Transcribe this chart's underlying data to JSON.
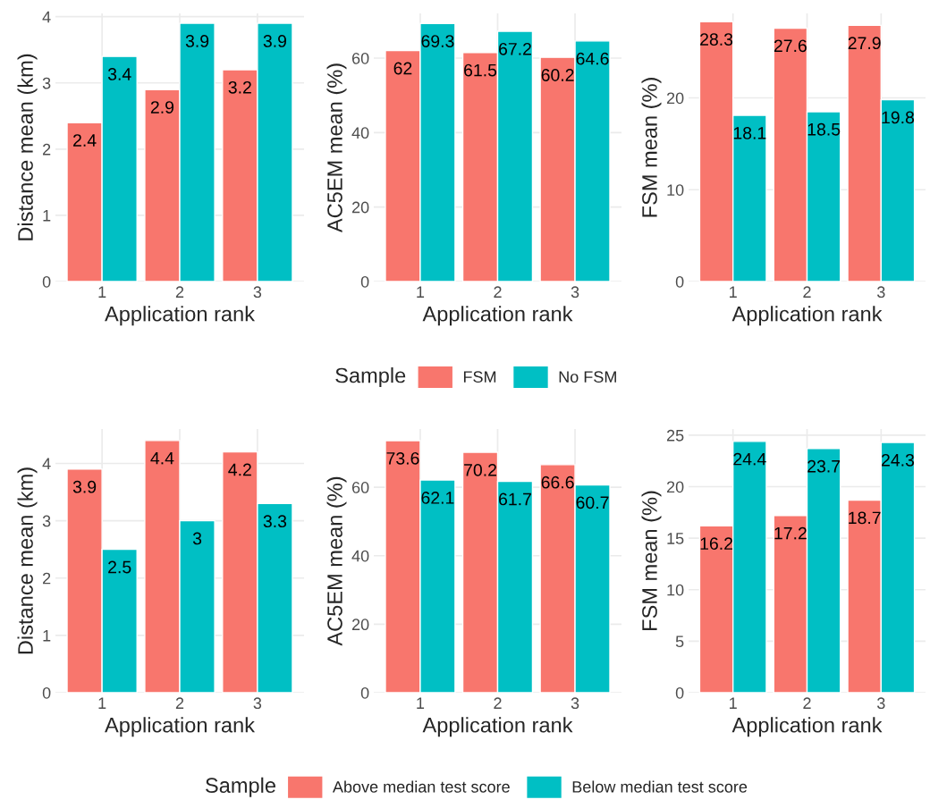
{
  "chart_data": [
    {
      "type": "bar",
      "categories": [
        "1",
        "2",
        "3"
      ],
      "xlabel": "Application rank",
      "ylabel": "Distance mean (km)",
      "ylim": [
        0,
        4.05
      ],
      "yticks": [
        0,
        1,
        2,
        3,
        4
      ],
      "grid": true,
      "data_labels": true,
      "series": [
        {
          "color": "#f8766d",
          "values": [
            2.4,
            2.9,
            3.2
          ]
        },
        {
          "color": "#00bfc4",
          "values": [
            3.4,
            3.9,
            3.9
          ]
        }
      ]
    },
    {
      "type": "bar",
      "categories": [
        "1",
        "2",
        "3"
      ],
      "xlabel": "Application rank",
      "ylabel": "AC5EM mean (%)",
      "ylim": [
        0,
        72
      ],
      "yticks": [
        0,
        20,
        40,
        60
      ],
      "grid": true,
      "data_labels": true,
      "legend": "bottom",
      "legend_title": "Sample",
      "series": [
        {
          "name": "FSM",
          "color": "#f8766d",
          "values": [
            62,
            61.5,
            60.2
          ]
        },
        {
          "name": "No FSM",
          "color": "#00bfc4",
          "values": [
            69.3,
            67.2,
            64.6
          ]
        }
      ]
    },
    {
      "type": "bar",
      "categories": [
        "1",
        "2",
        "3"
      ],
      "xlabel": "Application rank",
      "ylabel": "FSM mean (%)",
      "ylim": [
        0,
        29.2
      ],
      "yticks": [
        0,
        10,
        20
      ],
      "grid": true,
      "data_labels": true,
      "series": [
        {
          "color": "#f8766d",
          "values": [
            28.3,
            27.6,
            27.9
          ]
        },
        {
          "color": "#00bfc4",
          "values": [
            18.1,
            18.5,
            19.8
          ]
        }
      ]
    },
    {
      "type": "bar",
      "categories": [
        "1",
        "2",
        "3"
      ],
      "xlabel": "Application rank",
      "ylabel": "Distance mean (km)",
      "ylim": [
        0,
        4.6
      ],
      "yticks": [
        0,
        1,
        2,
        3,
        4
      ],
      "grid": true,
      "data_labels": true,
      "series": [
        {
          "color": "#f8766d",
          "values": [
            3.9,
            4.4,
            4.2
          ]
        },
        {
          "color": "#00bfc4",
          "values": [
            2.5,
            3,
            3.3
          ]
        }
      ]
    },
    {
      "type": "bar",
      "categories": [
        "1",
        "2",
        "3"
      ],
      "xlabel": "Application rank",
      "ylabel": "AC5EM mean (%)",
      "ylim": [
        0,
        77
      ],
      "yticks": [
        0,
        20,
        40,
        60
      ],
      "grid": true,
      "data_labels": true,
      "legend": "bottom",
      "legend_title": "Sample",
      "series": [
        {
          "name": "Above median test score",
          "color": "#f8766d",
          "values": [
            73.6,
            70.2,
            66.6
          ]
        },
        {
          "name": "Below median test score",
          "color": "#00bfc4",
          "values": [
            62.1,
            61.7,
            60.7
          ]
        }
      ]
    },
    {
      "type": "bar",
      "categories": [
        "1",
        "2",
        "3"
      ],
      "xlabel": "Application rank",
      "ylabel": "FSM mean (%)",
      "ylim": [
        0,
        25.6
      ],
      "yticks": [
        0,
        5,
        10,
        15,
        20,
        25
      ],
      "grid": true,
      "data_labels": true,
      "series": [
        {
          "color": "#f8766d",
          "values": [
            16.2,
            17.2,
            18.7
          ]
        },
        {
          "color": "#00bfc4",
          "values": [
            24.4,
            23.7,
            24.3
          ]
        }
      ]
    }
  ]
}
